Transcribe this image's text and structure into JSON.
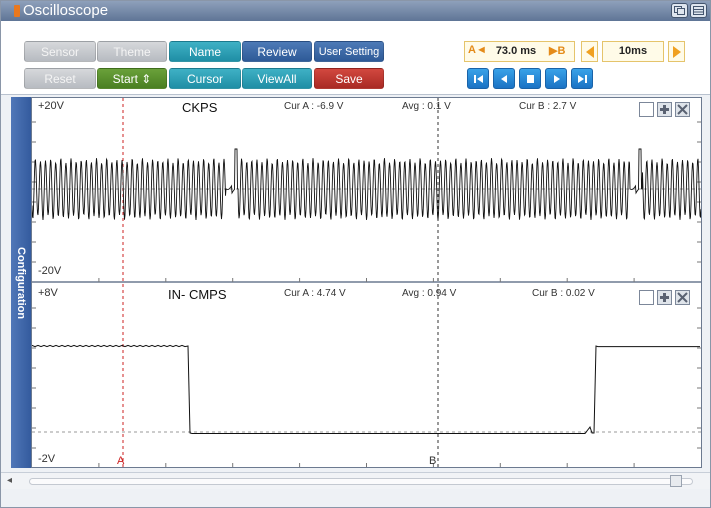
{
  "window": {
    "title": "Oscilloscope"
  },
  "toolbar": {
    "row1": [
      {
        "label": "Sensor",
        "enabled": false
      },
      {
        "label": "Theme",
        "enabled": false
      },
      {
        "label": "Name",
        "enabled": true
      },
      {
        "label": "Review",
        "enabled": true
      },
      {
        "label": "User Setting",
        "enabled": true
      }
    ],
    "row2": [
      {
        "label": "Reset",
        "enabled": false
      },
      {
        "label": "Start ⇕",
        "enabled": true
      },
      {
        "label": "Cursor",
        "enabled": true
      },
      {
        "label": "ViewAll",
        "enabled": true
      },
      {
        "label": "Save",
        "enabled": true
      }
    ],
    "cursor_a_marker": "A◄",
    "time_between_cursors": "73.0 ms",
    "cursor_b_marker": "▶B",
    "time_per_division": "10ms",
    "playback": [
      "first-icon",
      "prev-icon",
      "stop-icon",
      "next-icon",
      "last-icon"
    ]
  },
  "sidebar": {
    "label": "Configuration"
  },
  "channels": [
    {
      "name": "CKPS",
      "max_label": "+20V",
      "min_label": "-20V",
      "cur_a": "Cur A : -6.9 V",
      "avg": "Avg : 0.1 V",
      "cur_b": "Cur B : 2.7 V"
    },
    {
      "name": "IN- CMPS",
      "max_label": "+8V",
      "min_label": "-2V",
      "cur_a": "Cur A : 4.74 V",
      "avg": "Avg : 0.94 V",
      "cur_b": "Cur B : 0.02 V"
    }
  ],
  "cursors": {
    "a_label": "A",
    "b_label": "B"
  },
  "colors": {
    "cursor": "#cc2222",
    "trace": "#111111",
    "sidebar": "#3f66aa",
    "accent_teal": "#2a9fb6",
    "accent_blue": "#3a68a8",
    "accent_green": "#5a9030",
    "accent_red": "#bf3730"
  }
}
